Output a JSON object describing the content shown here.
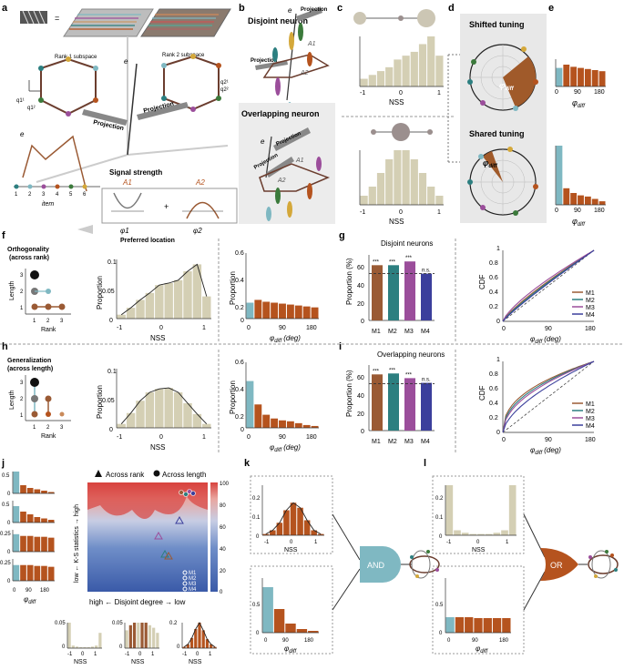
{
  "panel_labels": {
    "a": "a",
    "b": "b",
    "c": "c",
    "d": "d",
    "e": "e",
    "f": "f",
    "g": "g",
    "h": "h",
    "i": "i",
    "j": "j",
    "k": "k",
    "l": "l"
  },
  "a": {
    "rank1": "Rank 1 subspace",
    "rank2": "Rank 2 subspace",
    "projection": "Projection",
    "signal": "Signal strength",
    "a1": "A1",
    "a2": "A2",
    "plus": "+",
    "eq": "=",
    "phi1": "φ1",
    "phi2": "φ2",
    "preferred": "Preferred location",
    "item": "item",
    "items": [
      "1",
      "2",
      "3",
      "4",
      "5",
      "6"
    ],
    "ei": "e",
    "q": [
      "q1¹",
      "q1²",
      "q2¹",
      "q2²"
    ]
  },
  "b": {
    "disjoint": "Disjoint neuron",
    "overlapping": "Overlapping neuron",
    "projection": "Projection",
    "a1": "A1",
    "a2": "A2",
    "ei": "e"
  },
  "c": {
    "xlabel": "NSS",
    "ticks": [
      "-1",
      "0",
      "1"
    ]
  },
  "d": {
    "shifted": "Shifted tuning",
    "shared": "Shared tuning",
    "phi": "φ",
    "diff": "diff"
  },
  "e": {
    "ticks": [
      "0",
      "90",
      "180"
    ],
    "phi": "φ",
    "diff": "diff"
  },
  "f": {
    "title": "Orthogonality",
    "subtitle": "(across rank)",
    "length": "Length",
    "rank": "Rank",
    "lticks": [
      "1",
      "2",
      "3"
    ],
    "rticks": [
      "1",
      "2",
      "3"
    ],
    "ylabel": "Proportion",
    "xlabel": "NSS",
    "yticks": [
      "0",
      "0.05",
      "0.1"
    ],
    "xticks": [
      "-1",
      "0",
      "1"
    ],
    "ylabel2": "Proportion",
    "yticks2": [
      "0",
      "0.2",
      "0.4",
      "0.6"
    ],
    "xticks2": [
      "0",
      "90",
      "180"
    ],
    "xlabel2": "φ",
    "diff": "diff",
    "deg": "(deg)"
  },
  "g": {
    "title": "Disjoint neurons",
    "ylabel": "Proportion (%)",
    "yticks": [
      "0",
      "20",
      "40",
      "60"
    ],
    "sig": [
      "***",
      "***",
      "***",
      "n.s."
    ],
    "cdf": "CDF",
    "cdf_ticks": [
      "0",
      "0.2",
      "0.4",
      "0.6",
      "0.8",
      "1"
    ],
    "xticks": [
      "0",
      "90",
      "180"
    ],
    "phi": "φ",
    "diff": "diff",
    "deg": "(deg)"
  },
  "h": {
    "title": "Generalization",
    "subtitle": "(across length)",
    "length": "Length",
    "rank": "Rank",
    "lticks": [
      "1",
      "2",
      "3"
    ],
    "rticks": [
      "1",
      "2",
      "3"
    ],
    "ylabel": "Proportion",
    "xlabel": "NSS",
    "yticks": [
      "0",
      "0.05",
      "0.1"
    ],
    "xticks": [
      "-1",
      "0",
      "1"
    ],
    "ylabel2": "Proportion",
    "yticks2": [
      "0",
      "0.2",
      "0.4",
      "0.6"
    ],
    "xticks2": [
      "0",
      "90",
      "180"
    ],
    "xlabel2": "φ",
    "diff": "diff",
    "deg": "(deg)"
  },
  "i": {
    "title": "Overlapping neurons",
    "ylabel": "Proportion (%)",
    "yticks": [
      "0",
      "20",
      "40",
      "60"
    ],
    "sig": [
      "***",
      "***",
      "***",
      "n.s."
    ],
    "cdf": "CDF",
    "cdf_ticks": [
      "0",
      "0.2",
      "0.4",
      "0.6",
      "0.8",
      "1"
    ],
    "xticks": [
      "0",
      "90",
      "180"
    ],
    "phi": "φ",
    "diff": "diff",
    "deg": "(deg)"
  },
  "models": {
    "names": [
      "M1",
      "M2",
      "M3",
      "M4"
    ],
    "colors": [
      "#9a5a34",
      "#2c7f80",
      "#9b4e9b",
      "#3b3f9c"
    ]
  },
  "j": {
    "across_rank": "Across rank",
    "across_length": "Across length",
    "ylabel": "low ← K-S statistics → high",
    "xlabel": "high ← Disjoint degree → low",
    "cbar": [
      "100",
      "80",
      "60",
      "40",
      "20",
      "0"
    ],
    "hist_y": [
      [
        "0.5",
        "0"
      ],
      [
        "0.5",
        "0"
      ],
      [
        "0.25",
        "0"
      ],
      [
        "0.25",
        "0"
      ]
    ],
    "phi_ticks": [
      "0",
      "90",
      "180"
    ],
    "phi": "φ",
    "diff": "diff",
    "nss": "NSS",
    "nss_ticks": [
      "-1",
      "0",
      "1"
    ],
    "bottom_y": [
      [
        "0.05",
        "0"
      ],
      [
        "0.05",
        "0"
      ],
      [
        "0.2",
        "0"
      ]
    ]
  },
  "k": {
    "gate": "AND",
    "nss": "NSS",
    "nss_ticks": [
      "-1",
      "0",
      "1"
    ],
    "yticks": [
      "0",
      "0.1",
      "0.2"
    ],
    "yticks2": [
      "0",
      "0.5"
    ],
    "phi_ticks": [
      "0",
      "90",
      "180"
    ],
    "phi": "φ",
    "diff": "diff"
  },
  "l": {
    "gate": "OR",
    "nss": "NSS",
    "nss_ticks": [
      "-1",
      "0",
      "1"
    ],
    "yticks": [
      "0",
      "0.1",
      "0.2"
    ],
    "yticks2": [
      "0",
      "0.5"
    ],
    "phi_ticks": [
      "0",
      "90",
      "180"
    ],
    "phi": "φ",
    "diff": "diff"
  },
  "colors": {
    "teal": "#7fb8c2",
    "brown": "#b5531e",
    "beige": "#d4cfb4",
    "gray": "#9b8f8e",
    "heat_red": "#d8433e",
    "heat_blue": "#3a5aa8"
  },
  "chart_data": [
    {
      "type": "bar",
      "categories": [
        "-0.9",
        "-0.7",
        "-0.5",
        "-0.3",
        "-0.1",
        "0.1",
        "0.3",
        "0.5",
        "0.7",
        "0.9"
      ],
      "values": [
        2,
        3,
        4,
        5,
        7,
        8,
        9,
        11,
        13,
        8
      ],
      "xlabel": "NSS",
      "title": ""
    },
    {
      "type": "bar",
      "categories": [
        "-0.9",
        "-0.7",
        "-0.5",
        "-0.3",
        "-0.1",
        "0.1",
        "0.3",
        "0.5",
        "0.7",
        "0.9"
      ],
      "values": [
        2,
        4,
        7,
        10,
        12,
        12,
        10,
        7,
        4,
        2
      ],
      "xlabel": "NSS",
      "title": ""
    },
    {
      "type": "bar",
      "categories": [
        "-0.9",
        "-0.7",
        "-0.5",
        "-0.3",
        "-0.1",
        "0.1",
        "0.3",
        "0.5",
        "0.7",
        "0.9"
      ],
      "values": [
        0.008,
        0.022,
        0.038,
        0.052,
        0.068,
        0.072,
        0.078,
        0.096,
        0.11,
        0.045
      ],
      "xlabel": "NSS",
      "ylabel": "Proportion",
      "ylim": [
        0,
        0.12
      ]
    },
    {
      "type": "bar",
      "categories": [
        "0",
        "20",
        "40",
        "60",
        "80",
        "100",
        "120",
        "140",
        "160"
      ],
      "values": [
        0.17,
        0.2,
        0.18,
        0.17,
        0.16,
        0.15,
        0.14,
        0.13,
        0.12
      ],
      "xlabel": "φdiff (deg)",
      "ylabel": "Proportion",
      "ylim": [
        0,
        0.7
      ]
    },
    {
      "type": "bar",
      "categories": [
        "M1",
        "M2",
        "M3",
        "M4"
      ],
      "values": [
        59,
        59,
        63,
        50
      ],
      "ylabel": "Proportion (%)",
      "title": "Disjoint neurons",
      "ylim": [
        0,
        70
      ]
    },
    {
      "type": "bar",
      "categories": [
        "-0.9",
        "-0.7",
        "-0.5",
        "-0.3",
        "-0.1",
        "0.1",
        "0.3",
        "0.5",
        "0.7",
        "0.9"
      ],
      "values": [
        0.008,
        0.03,
        0.055,
        0.072,
        0.079,
        0.081,
        0.072,
        0.05,
        0.028,
        0.008
      ],
      "xlabel": "NSS",
      "ylabel": "Proportion",
      "ylim": [
        0,
        0.12
      ]
    },
    {
      "type": "bar",
      "categories": [
        "0",
        "20",
        "40",
        "60",
        "80",
        "100",
        "120",
        "140",
        "160"
      ],
      "values": [
        0.5,
        0.25,
        0.14,
        0.1,
        0.08,
        0.07,
        0.05,
        0.03,
        0.02
      ],
      "xlabel": "φdiff (deg)",
      "ylabel": "Proportion",
      "ylim": [
        0,
        0.7
      ]
    },
    {
      "type": "bar",
      "categories": [
        "M1",
        "M2",
        "M3",
        "M4"
      ],
      "values": [
        60,
        61,
        56,
        51
      ],
      "ylabel": "Proportion (%)",
      "title": "Overlapping neurons",
      "ylim": [
        0,
        70
      ]
    }
  ]
}
